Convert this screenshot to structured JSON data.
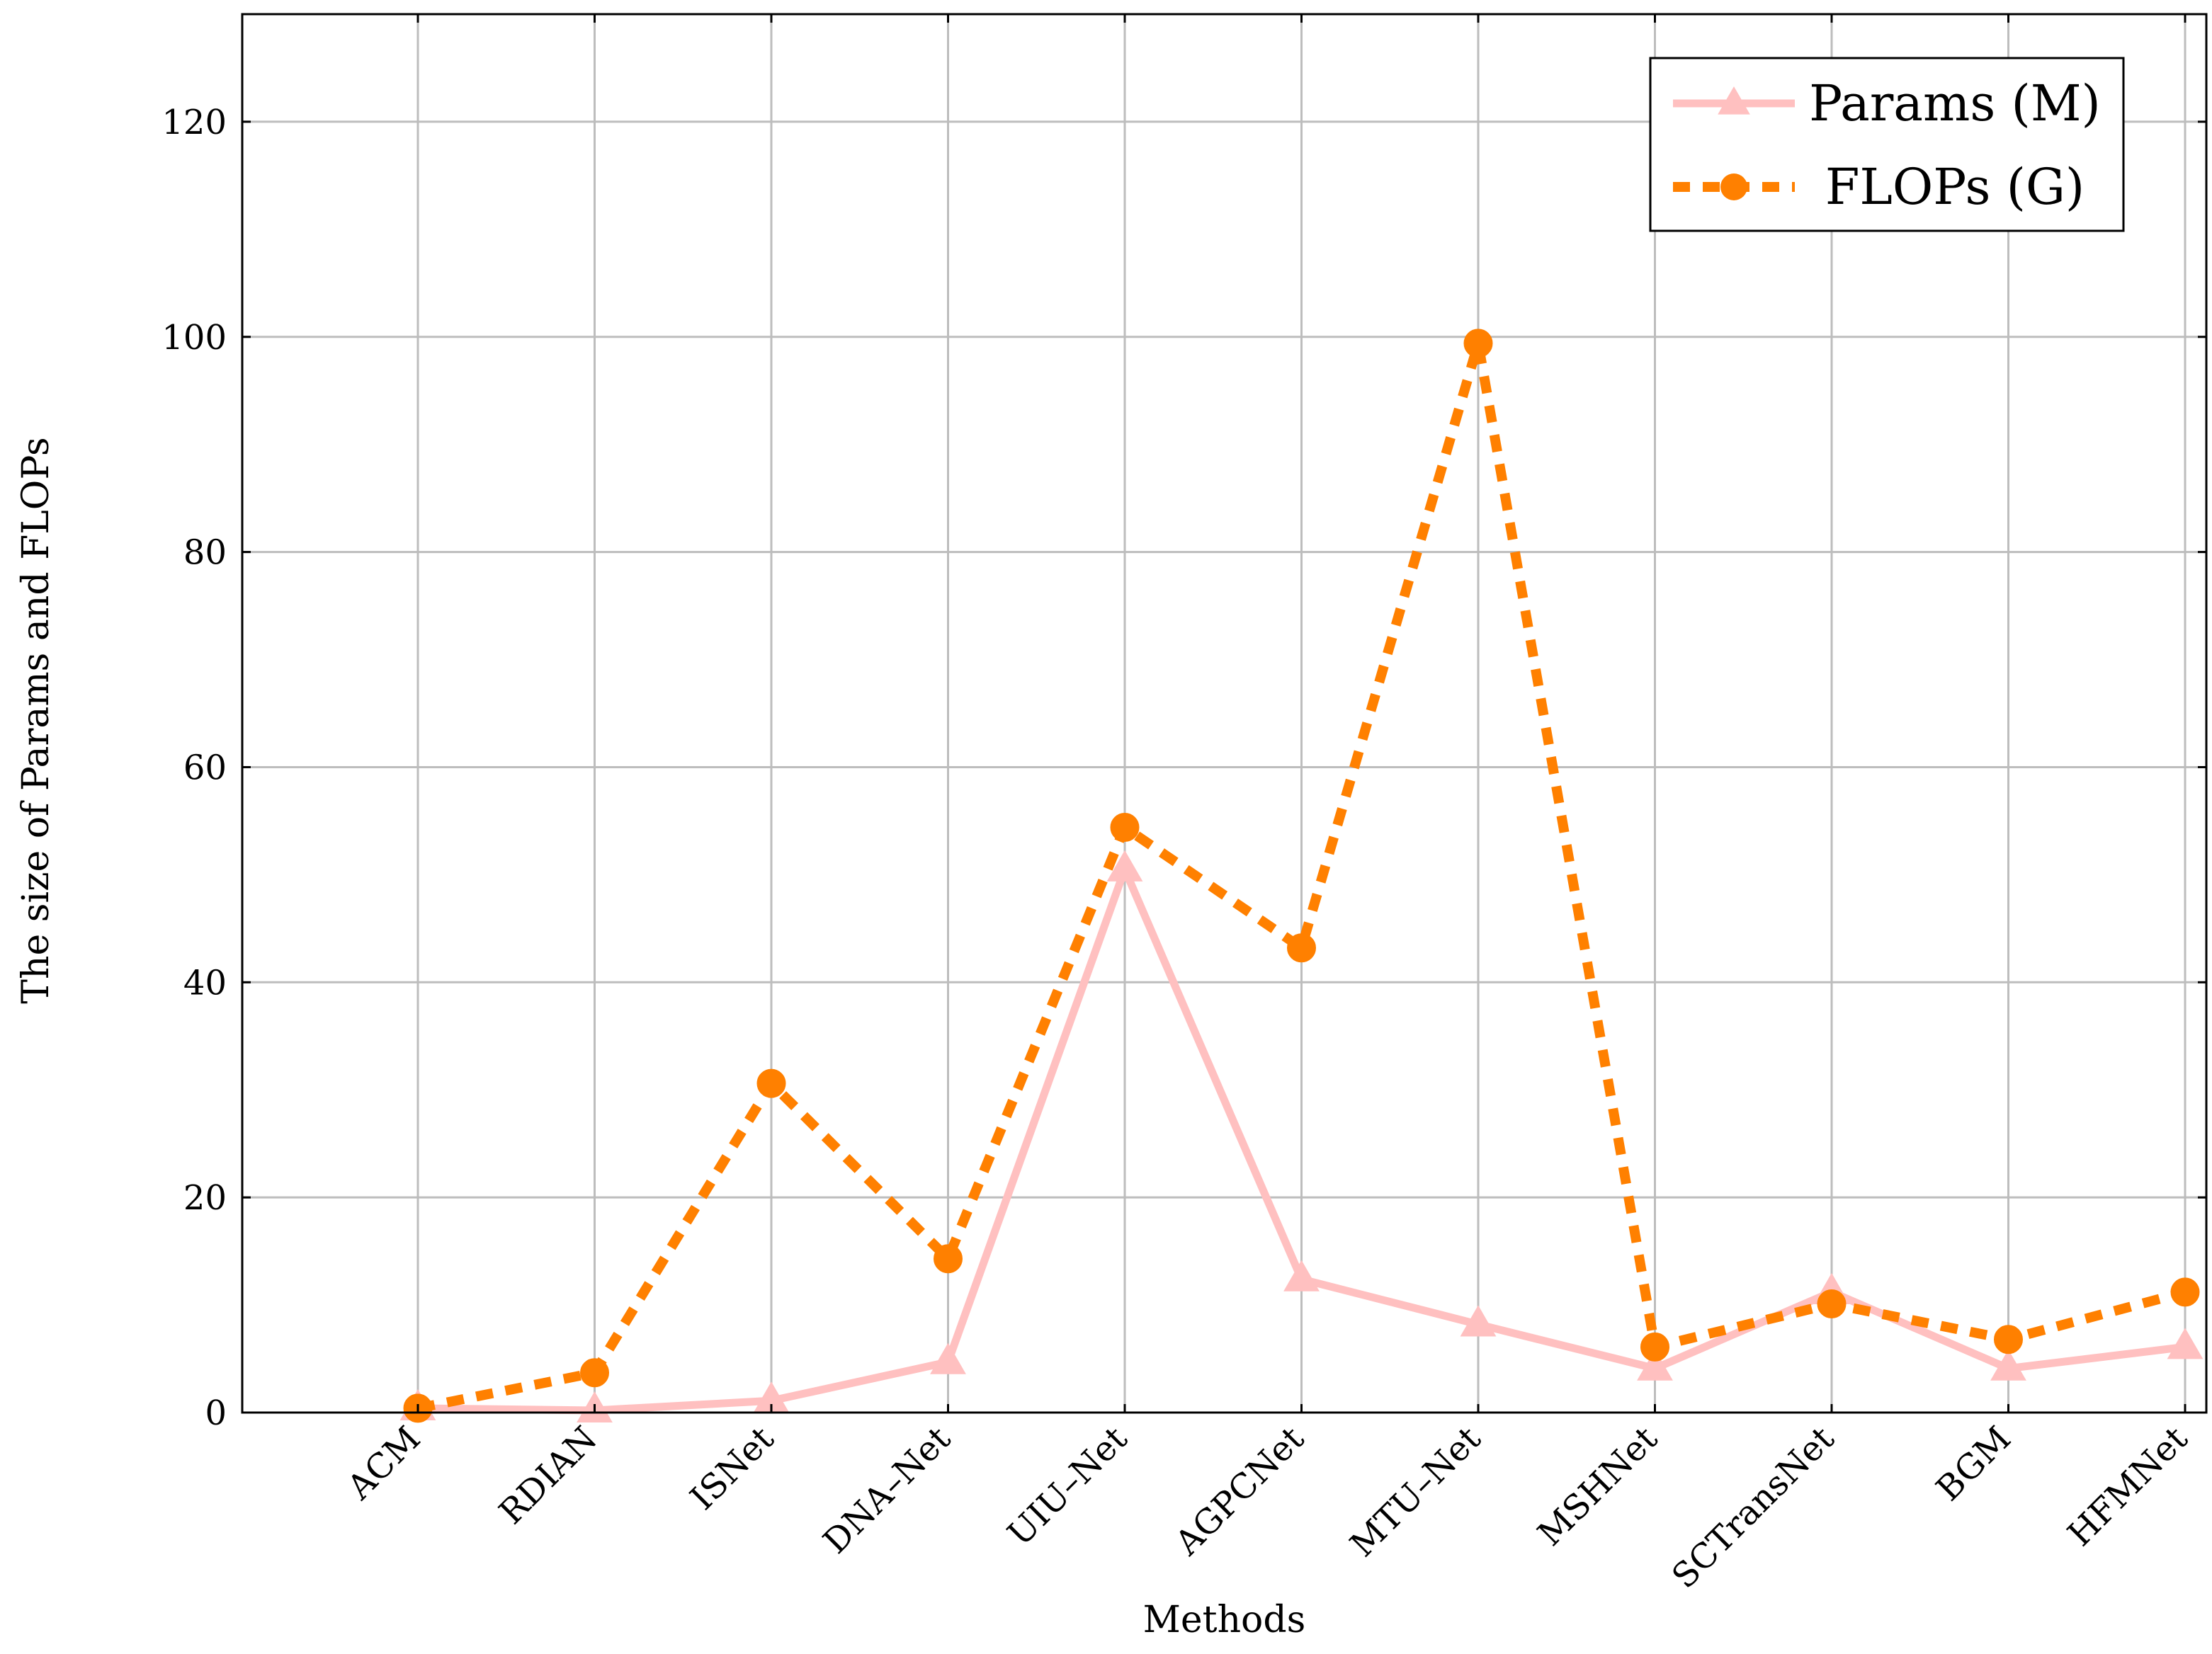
{
  "chart_data": {
    "type": "line",
    "title": "",
    "xlabel": "Methods",
    "ylabel": "The size of Params and FLOPs",
    "categories": [
      "ACM",
      "RDIAN",
      "ISNet",
      "DNA–Net",
      "UIU–Net",
      "AGPCNet",
      "MTU–Net",
      "MSHNet",
      "SCTransNet",
      "BGM",
      "HFMNet"
    ],
    "ylim": [
      0,
      130
    ],
    "yticks": [
      0,
      20,
      40,
      60,
      80,
      100,
      120
    ],
    "grid": true,
    "legend_position": "top-right",
    "series": [
      {
        "name": "Params (M)",
        "color": "#ffc0c0",
        "line_style": "solid",
        "marker": "triangle",
        "values": [
          0.4,
          0.2,
          1.1,
          4.7,
          50.5,
          12.4,
          8.2,
          4.1,
          11.2,
          4.1,
          6.1
        ]
      },
      {
        "name": "FLOPs (G)",
        "color": "#ff8000",
        "line_style": "dashed",
        "marker": "circle",
        "values": [
          0.4,
          3.7,
          30.6,
          14.3,
          54.4,
          43.2,
          99.4,
          6.1,
          10.1,
          6.8,
          11.2
        ]
      }
    ]
  }
}
